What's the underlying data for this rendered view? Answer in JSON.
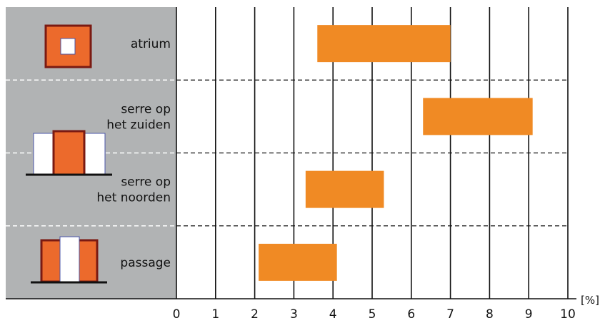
{
  "chart_data": {
    "type": "bar",
    "orientation": "horizontal",
    "title": "",
    "xlabel": "",
    "ylabel": "",
    "x_unit": "[%]",
    "xlim": [
      0,
      10
    ],
    "x_ticks": [
      "0",
      "1",
      "2",
      "3",
      "4",
      "5",
      "6",
      "7",
      "8",
      "9",
      "10"
    ],
    "grid": "vertical lines at every integer",
    "categories": [
      {
        "label_lines": [
          "atrium"
        ],
        "range": [
          3.6,
          7.0
        ]
      },
      {
        "label_lines": [
          "serre op",
          "het zuiden"
        ],
        "range": [
          6.3,
          9.1
        ]
      },
      {
        "label_lines": [
          "serre op",
          "het noorden"
        ],
        "range": [
          3.3,
          5.3
        ]
      },
      {
        "label_lines": [
          "passage"
        ],
        "range": [
          2.1,
          4.1
        ]
      }
    ],
    "icons": [
      "atrium-icon",
      "serre-icon",
      "passage-icon"
    ],
    "colors": {
      "bar": "#f08a24",
      "panel": "#b1b3b4",
      "icon_fill": "#ec6a2c",
      "icon_border": "#7a1a12"
    }
  }
}
